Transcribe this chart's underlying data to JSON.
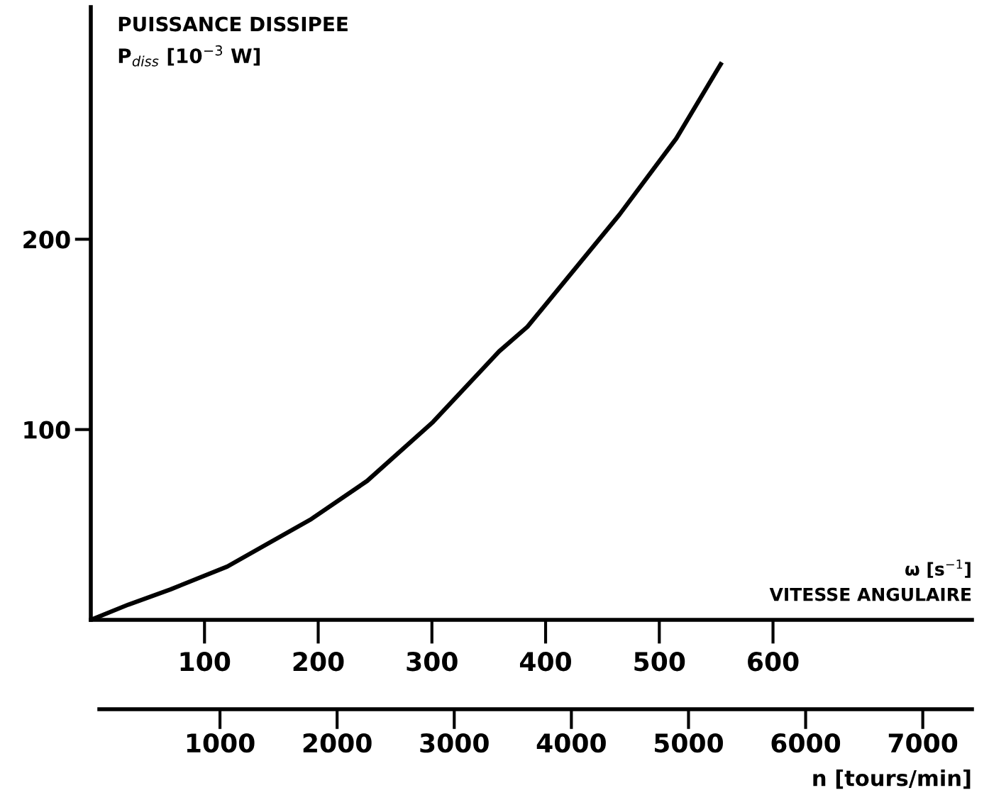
{
  "chart_data": {
    "type": "line",
    "ylabel": "PUISSANCE DISSIPEE\nP$_{diss}$ [10$^{−3}$ W]",
    "xlabel": "ω [s$^{−1}$]\nVITESSE ANGULAIRE",
    "x2label": "n [tours/min]",
    "series": [
      {
        "color": "#000000",
        "x": [
          0,
          33,
          70,
          120,
          194,
          243,
          301,
          359,
          384,
          465,
          515,
          554
        ],
        "values": [
          0,
          8,
          16,
          28,
          53,
          73,
          104,
          141,
          154,
          213,
          253,
          292
        ]
      }
    ],
    "xlim": [
      0,
      775
    ],
    "xticks": [
      100,
      200,
      300,
      400,
      500,
      600
    ],
    "ylim": [
      0,
      322
    ],
    "yticks": [
      100,
      200
    ],
    "x2lim": [
      -30,
      7420
    ],
    "x2ticks": [
      1000,
      2000,
      3000,
      4000,
      5000,
      6000,
      7000
    ],
    "grid": false,
    "legend": false,
    "marker": "none",
    "line_style": "solid"
  }
}
